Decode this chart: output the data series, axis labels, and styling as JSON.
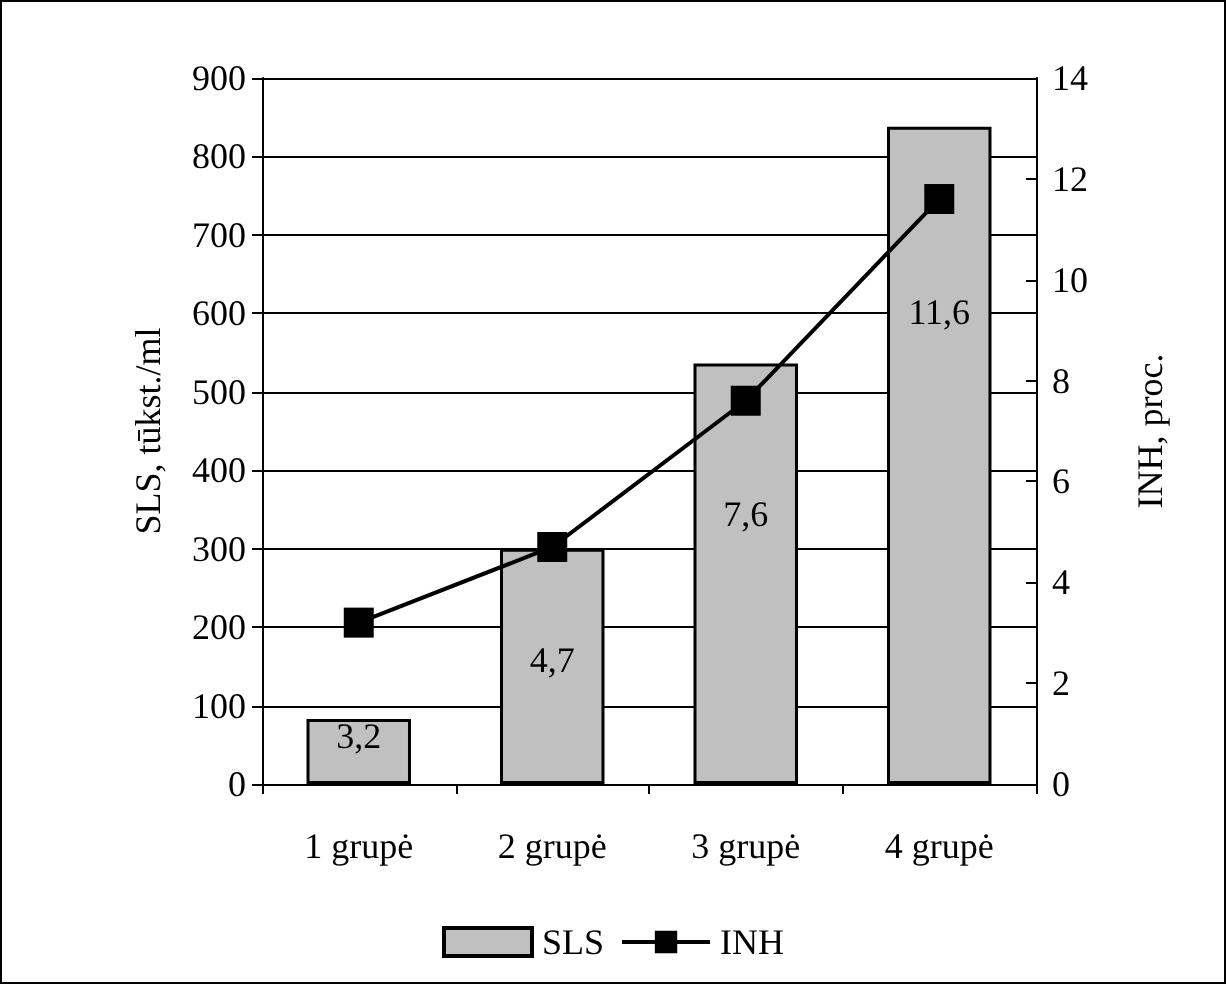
{
  "chart_data": {
    "type": "bar",
    "categories": [
      "1 grupė",
      "2 grupė",
      "3 grupė",
      "4 grupė"
    ],
    "series": [
      {
        "name": "SLS",
        "color": "#c0c0c0",
        "values": [
          83,
          300,
          536,
          838
        ]
      },
      {
        "name": "INH",
        "type": "line",
        "axis": "y2",
        "color": "#000000",
        "values": [
          3.2,
          4.7,
          7.6,
          11.6
        ],
        "value_labels": [
          "3,2",
          "4,7",
          "7,6",
          "11,6"
        ]
      }
    ],
    "ylabel": "SLS, tūkst./ml",
    "y2label": "INH, proc.",
    "ylim": [
      0,
      900
    ],
    "yticks": [
      0,
      100,
      200,
      300,
      400,
      500,
      600,
      700,
      800,
      900
    ],
    "y2lim": [
      0,
      14
    ],
    "y2ticks": [
      0,
      2,
      4,
      6,
      8,
      10,
      12,
      14
    ],
    "grid": "y",
    "legend": "bottom",
    "marker": "square",
    "line_style": "solid"
  }
}
